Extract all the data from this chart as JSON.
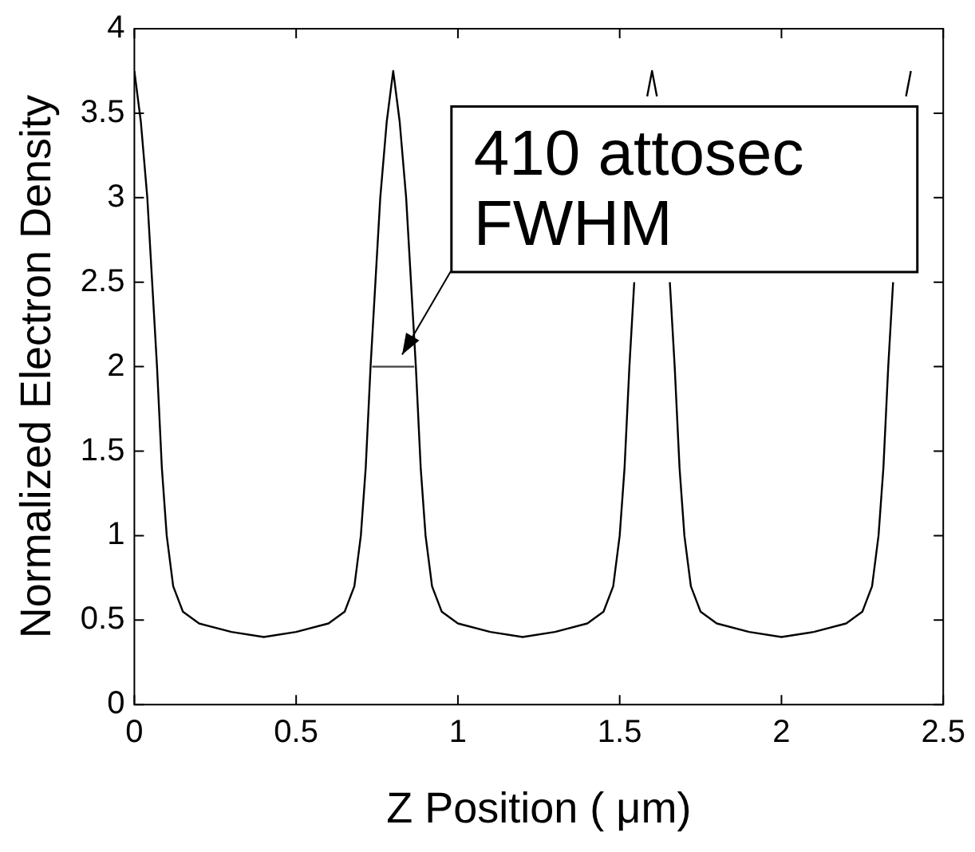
{
  "chart_data": {
    "type": "line",
    "xlabel": "Z Position ( μm)",
    "ylabel": "Normalized Electron Density",
    "xlim": [
      0,
      2.5
    ],
    "xticks": [
      0,
      0.5,
      1,
      1.5,
      2,
      2.5
    ],
    "ylim": [
      0,
      4
    ],
    "yticks": [
      0,
      0.5,
      1,
      1.5,
      2,
      2.5,
      3,
      3.5,
      4
    ],
    "grid": false,
    "marker": "none",
    "line_style": "solid",
    "annotations": [
      {
        "text": "410 attosec\nFWHM",
        "x": 0.8,
        "y": 2
      }
    ],
    "series": [
      {
        "color": "#000000",
        "x": [
          0,
          0.02,
          0.04,
          0.055,
          0.07,
          0.085,
          0.1,
          0.12,
          0.15,
          0.2,
          0.3,
          0.4,
          0.5,
          0.6,
          0.65,
          0.68,
          0.7,
          0.715,
          0.73,
          0.745,
          0.76,
          0.78,
          0.8,
          0.82,
          0.84,
          0.855,
          0.87,
          0.885,
          0.9,
          0.92,
          0.95,
          1.0,
          1.1,
          1.2,
          1.3,
          1.4,
          1.45,
          1.48,
          1.5,
          1.515,
          1.53,
          1.545,
          1.56,
          1.585,
          1.6,
          1.615,
          1.64,
          1.655,
          1.67,
          1.685,
          1.7,
          1.72,
          1.75,
          1.8,
          1.9,
          2.0,
          2.1,
          2.2,
          2.25,
          2.28,
          2.3,
          2.315,
          2.33,
          2.345,
          2.36,
          2.385,
          2.4
        ],
        "values": [
          3.75,
          3.45,
          3.0,
          2.5,
          2.0,
          1.4,
          1.0,
          0.7,
          0.55,
          0.48,
          0.43,
          0.4,
          0.43,
          0.48,
          0.55,
          0.7,
          1.0,
          1.4,
          2.0,
          2.5,
          3.0,
          3.45,
          3.75,
          3.45,
          3.0,
          2.5,
          2.0,
          1.4,
          1.0,
          0.7,
          0.55,
          0.48,
          0.43,
          0.4,
          0.43,
          0.48,
          0.55,
          0.7,
          1.0,
          1.4,
          2.0,
          2.5,
          null,
          3.6,
          3.75,
          3.6,
          null,
          2.5,
          2.0,
          1.4,
          1.0,
          0.7,
          0.55,
          0.48,
          0.43,
          0.4,
          0.43,
          0.48,
          0.55,
          0.7,
          1.0,
          1.4,
          2.0,
          2.5,
          null,
          3.6,
          3.75
        ]
      },
      {
        "color": "#404040",
        "x": [
          0.735,
          0.8,
          0.865
        ],
        "values": [
          2,
          2,
          2
        ]
      }
    ]
  }
}
